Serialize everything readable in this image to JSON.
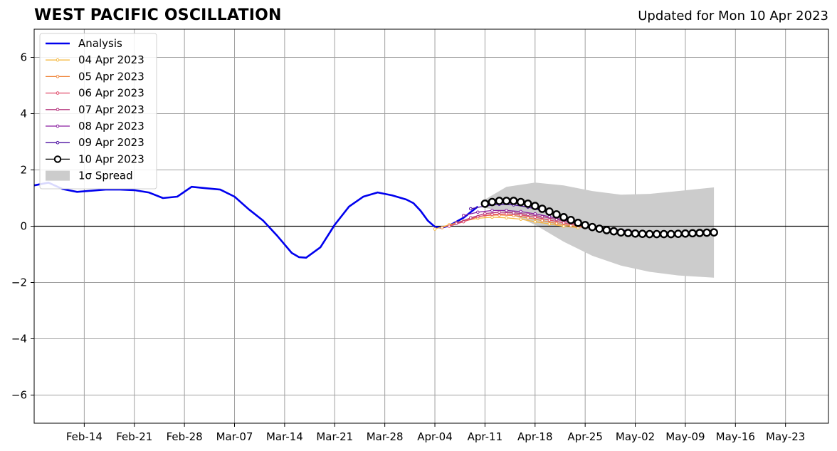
{
  "header": {
    "title": "WEST PACIFIC OSCILLATION",
    "updated": "Updated for Mon 10 Apr 2023"
  },
  "chart_data": {
    "type": "line",
    "title": "WEST PACIFIC OSCILLATION",
    "subtitle": "Updated for Mon 10 Apr 2023",
    "xlabel": "",
    "ylabel": "",
    "x_axis": {
      "type": "date",
      "range": [
        "2023-02-07",
        "2023-05-29"
      ],
      "ticks": [
        "2023-02-14",
        "2023-02-21",
        "2023-02-28",
        "2023-03-07",
        "2023-03-14",
        "2023-03-21",
        "2023-03-28",
        "2023-04-04",
        "2023-04-11",
        "2023-04-18",
        "2023-04-25",
        "2023-05-02",
        "2023-05-09",
        "2023-05-16",
        "2023-05-23"
      ],
      "tick_labels": [
        "Feb-14",
        "Feb-21",
        "Feb-28",
        "Mar-07",
        "Mar-14",
        "Mar-21",
        "Mar-28",
        "Apr-04",
        "Apr-11",
        "Apr-18",
        "Apr-25",
        "May-02",
        "May-09",
        "May-16",
        "May-23"
      ]
    },
    "y_axis": {
      "range": [
        -7,
        7
      ],
      "ticks": [
        -6,
        -4,
        -2,
        0,
        2,
        4,
        6
      ],
      "tick_labels": [
        "−6",
        "−4",
        "−2",
        "0",
        "2",
        "4",
        "6"
      ]
    },
    "grid": true,
    "zero_line": true,
    "legend": {
      "placement": "top-left"
    },
    "analysis": {
      "name": "Analysis",
      "color": "#0000ee",
      "x": [
        "2023-02-07",
        "2023-02-09",
        "2023-02-11",
        "2023-02-13",
        "2023-02-15",
        "2023-02-17",
        "2023-02-19",
        "2023-02-21",
        "2023-02-23",
        "2023-02-25",
        "2023-02-27",
        "2023-03-01",
        "2023-03-03",
        "2023-03-05",
        "2023-03-07",
        "2023-03-09",
        "2023-03-11",
        "2023-03-13",
        "2023-03-15",
        "2023-03-16",
        "2023-03-17",
        "2023-03-19",
        "2023-03-21",
        "2023-03-23",
        "2023-03-25",
        "2023-03-27",
        "2023-03-29",
        "2023-03-31",
        "2023-04-01",
        "2023-04-02",
        "2023-04-03",
        "2023-04-04",
        "2023-04-05",
        "2023-04-06",
        "2023-04-08",
        "2023-04-10"
      ],
      "y": [
        1.45,
        1.55,
        1.32,
        1.22,
        1.26,
        1.3,
        1.3,
        1.28,
        1.2,
        1.0,
        1.05,
        1.4,
        1.35,
        1.3,
        1.05,
        0.6,
        0.2,
        -0.35,
        -0.95,
        -1.1,
        -1.12,
        -0.75,
        0.05,
        0.7,
        1.05,
        1.2,
        1.1,
        0.95,
        0.82,
        0.55,
        0.2,
        -0.02,
        -0.05,
        0.02,
        0.3,
        0.7
      ]
    },
    "forecasts": [
      {
        "name": "04 Apr 2023",
        "color": "#f5b841",
        "x": [
          "2023-04-04",
          "2023-04-06",
          "2023-04-08",
          "2023-04-10",
          "2023-04-12",
          "2023-04-14",
          "2023-04-16",
          "2023-04-18",
          "2023-04-20",
          "2023-04-22",
          "2023-04-24"
        ],
        "y": [
          -0.1,
          0.05,
          0.18,
          0.28,
          0.32,
          0.3,
          0.25,
          0.16,
          0.08,
          0.0,
          -0.05
        ]
      },
      {
        "name": "05 Apr 2023",
        "color": "#f0883e",
        "x": [
          "2023-04-05",
          "2023-04-07",
          "2023-04-09",
          "2023-04-11",
          "2023-04-13",
          "2023-04-15",
          "2023-04-17",
          "2023-04-19",
          "2023-04-21",
          "2023-04-23",
          "2023-04-25"
        ],
        "y": [
          -0.05,
          0.12,
          0.28,
          0.38,
          0.4,
          0.38,
          0.3,
          0.2,
          0.1,
          0.02,
          -0.05
        ]
      },
      {
        "name": "06 Apr 2023",
        "color": "#e04a6a",
        "x": [
          "2023-04-06",
          "2023-04-08",
          "2023-04-10",
          "2023-04-12",
          "2023-04-14",
          "2023-04-16",
          "2023-04-18",
          "2023-04-20",
          "2023-04-22",
          "2023-04-24",
          "2023-04-26",
          "2023-04-28"
        ],
        "y": [
          0.0,
          0.16,
          0.34,
          0.42,
          0.44,
          0.4,
          0.32,
          0.22,
          0.12,
          0.02,
          -0.08,
          -0.12
        ]
      },
      {
        "name": "07 Apr 2023",
        "color": "#b5367d",
        "x": [
          "2023-04-07",
          "2023-04-09",
          "2023-04-11",
          "2023-04-13",
          "2023-04-15",
          "2023-04-17",
          "2023-04-19",
          "2023-04-21",
          "2023-04-23",
          "2023-04-25",
          "2023-04-27",
          "2023-04-29",
          "2023-05-01"
        ],
        "y": [
          0.1,
          0.3,
          0.45,
          0.5,
          0.48,
          0.42,
          0.34,
          0.24,
          0.12,
          0.02,
          -0.08,
          -0.15,
          -0.18
        ]
      },
      {
        "name": "08 Apr 2023",
        "color": "#8a1fa0",
        "x": [
          "2023-04-08",
          "2023-04-10",
          "2023-04-12",
          "2023-04-14",
          "2023-04-16",
          "2023-04-18",
          "2023-04-20",
          "2023-04-22",
          "2023-04-24",
          "2023-04-26",
          "2023-04-28",
          "2023-04-30",
          "2023-05-02"
        ],
        "y": [
          0.38,
          0.5,
          0.56,
          0.56,
          0.52,
          0.44,
          0.34,
          0.22,
          0.1,
          0.0,
          -0.1,
          -0.16,
          -0.18
        ]
      },
      {
        "name": "09 Apr 2023",
        "color": "#4b0ea0",
        "x": [
          "2023-04-09",
          "2023-04-11",
          "2023-04-13",
          "2023-04-15",
          "2023-04-17",
          "2023-04-19",
          "2023-04-21",
          "2023-04-23",
          "2023-04-25",
          "2023-04-27",
          "2023-04-29",
          "2023-05-01"
        ],
        "y": [
          0.62,
          0.72,
          0.78,
          0.76,
          0.68,
          0.55,
          0.4,
          0.24,
          0.08,
          -0.04,
          -0.12,
          -0.16
        ]
      },
      {
        "name": "10 Apr 2023",
        "color": "#000000",
        "x": [
          "2023-04-11",
          "2023-04-12",
          "2023-04-13",
          "2023-04-14",
          "2023-04-15",
          "2023-04-16",
          "2023-04-17",
          "2023-04-18",
          "2023-04-19",
          "2023-04-20",
          "2023-04-21",
          "2023-04-22",
          "2023-04-23",
          "2023-04-24",
          "2023-04-25",
          "2023-04-26",
          "2023-04-27",
          "2023-04-28",
          "2023-04-29",
          "2023-04-30",
          "2023-05-01",
          "2023-05-02",
          "2023-05-03",
          "2023-05-04",
          "2023-05-05",
          "2023-05-06",
          "2023-05-07",
          "2023-05-08",
          "2023-05-09",
          "2023-05-10",
          "2023-05-11",
          "2023-05-12",
          "2023-05-13"
        ],
        "y": [
          0.8,
          0.86,
          0.9,
          0.9,
          0.9,
          0.86,
          0.8,
          0.72,
          0.62,
          0.52,
          0.42,
          0.32,
          0.22,
          0.12,
          0.04,
          -0.03,
          -0.09,
          -0.14,
          -0.18,
          -0.22,
          -0.24,
          -0.26,
          -0.27,
          -0.28,
          -0.28,
          -0.28,
          -0.28,
          -0.27,
          -0.26,
          -0.25,
          -0.24,
          -0.23,
          -0.22
        ]
      }
    ],
    "spread": {
      "name": "1σ Spread",
      "color": "#cccccc",
      "x": [
        "2023-04-11",
        "2023-04-14",
        "2023-04-18",
        "2023-04-22",
        "2023-04-26",
        "2023-04-30",
        "2023-05-04",
        "2023-05-08",
        "2023-05-13"
      ],
      "upper": [
        0.95,
        1.4,
        1.55,
        1.45,
        1.25,
        1.12,
        1.15,
        1.25,
        1.38
      ],
      "lower": [
        0.65,
        0.5,
        0.05,
        -0.55,
        -1.05,
        -1.4,
        -1.62,
        -1.75,
        -1.83
      ]
    }
  }
}
